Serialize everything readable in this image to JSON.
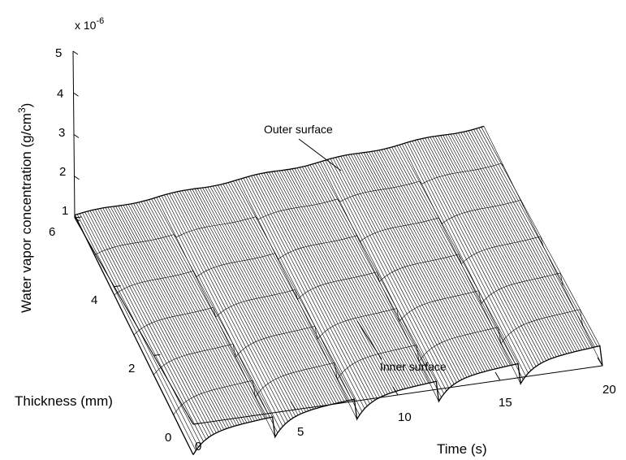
{
  "chart_data": {
    "type": "surface",
    "title": "",
    "xlabel": "Time (s)",
    "ylabel": "Thickness (mm)",
    "zlabel": "Water vapor concentration (g/cm",
    "zlabel_superscript": "3",
    "zlabel_suffix": ")",
    "z_exponent_label": "x 10",
    "z_exponent": "-6",
    "x_ticks": [
      "0",
      "5",
      "10",
      "15",
      "20"
    ],
    "y_ticks": [
      "0",
      "2",
      "4",
      "6"
    ],
    "z_ticks": [
      "1",
      "2",
      "3",
      "4",
      "5"
    ],
    "xlim": [
      0,
      20
    ],
    "ylim": [
      0,
      6
    ],
    "zlim": [
      1,
      5
    ],
    "z_scale": 1e-06,
    "grid": false,
    "annotations": [
      {
        "text": "Outer surface",
        "points_to": {
          "time_s": 8,
          "thickness_mm": 6
        }
      },
      {
        "text": "Inner surface",
        "points_to": {
          "time_s": 7.5,
          "thickness_mm": 0
        }
      }
    ],
    "cycles": 5,
    "cycle_period_s": 4,
    "series": [
      {
        "thickness_mm": 6,
        "time_s": [
          0,
          1,
          2,
          3,
          4,
          5,
          6,
          7,
          8,
          9,
          10,
          11,
          12,
          13,
          14,
          15,
          16,
          17,
          18,
          19,
          20
        ],
        "values": [
          1.05,
          1.12,
          1.13,
          1.2,
          1.32,
          1.4,
          1.45,
          1.52,
          1.62,
          1.7,
          1.75,
          1.82,
          1.91,
          1.98,
          2.02,
          2.08,
          2.16,
          2.22,
          2.25,
          2.3,
          2.38
        ]
      },
      {
        "thickness_mm": 3,
        "time_s": [
          0,
          1,
          2,
          3,
          4,
          5,
          6,
          7,
          8,
          9,
          10,
          11,
          12,
          13,
          14,
          15,
          16,
          17,
          18,
          19,
          20
        ],
        "values": [
          0.8,
          0.55,
          0.72,
          0.95,
          1.1,
          0.85,
          0.95,
          1.15,
          1.28,
          1.0,
          1.1,
          1.3,
          1.42,
          1.15,
          1.22,
          1.4,
          1.52,
          1.25,
          1.32,
          1.5,
          1.6
        ]
      },
      {
        "thickness_mm": 0,
        "time_s": [
          0,
          1,
          2,
          3,
          4,
          5,
          6,
          7,
          8,
          9,
          10,
          11,
          12,
          13,
          14,
          15,
          16,
          17,
          18,
          19,
          20
        ],
        "values": [
          0.4,
          0.15,
          0.6,
          0.85,
          0.95,
          0.35,
          0.75,
          1.0,
          1.1,
          0.45,
          0.85,
          1.1,
          1.2,
          0.5,
          0.9,
          1.15,
          1.25,
          0.55,
          0.92,
          1.18,
          1.3
        ]
      }
    ]
  }
}
